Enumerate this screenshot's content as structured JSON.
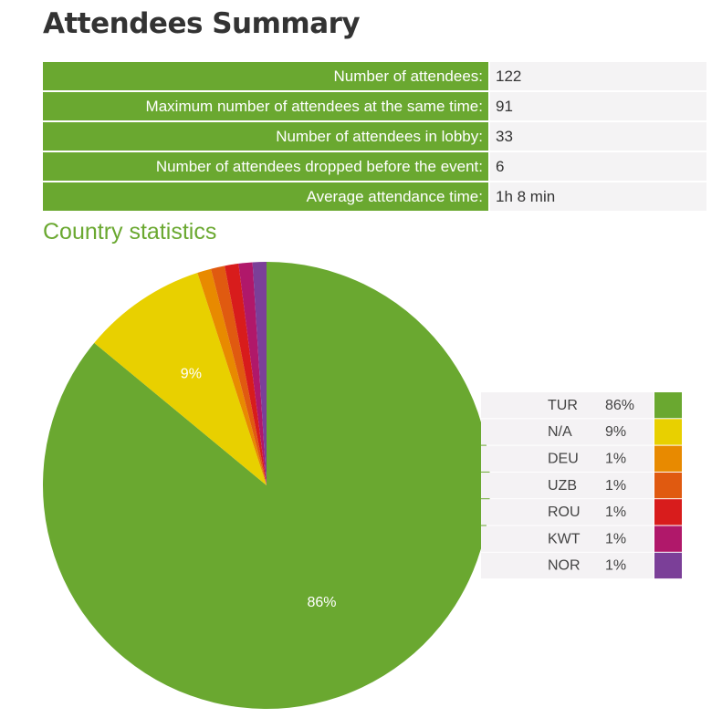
{
  "header": {
    "title": "Attendees Summary"
  },
  "table": {
    "rows": [
      [
        "Number of attendees:",
        "122"
      ],
      [
        "Maximum number of attendees at the same time:",
        "91"
      ],
      [
        "Number of attendees in lobby:",
        "33"
      ],
      [
        "Number of attendees dropped before the event:",
        "6"
      ],
      [
        "Average attendance time:",
        "1h 8 min"
      ]
    ]
  },
  "section": {
    "title": "Country statistics"
  },
  "chart_data": {
    "type": "pie",
    "categories": [
      "TUR",
      "N/A",
      "DEU",
      "UZB",
      "ROU",
      "KWT",
      "NOR"
    ],
    "values": [
      86,
      9,
      1,
      1,
      1,
      1,
      1
    ],
    "value_labels": [
      "86%",
      "9%",
      "1%",
      "1%",
      "1%",
      "1%",
      "1%"
    ],
    "colors": [
      "#6aa830",
      "#e8d000",
      "#e88a00",
      "#e05a10",
      "#d81c1c",
      "#b0186a",
      "#7b3f98"
    ],
    "legend": "right"
  }
}
